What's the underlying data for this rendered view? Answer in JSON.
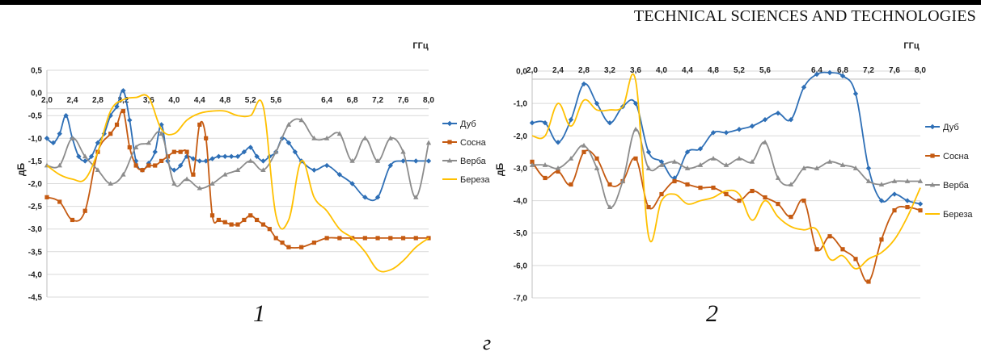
{
  "header": {
    "running_head": "TECHNICAL SCIENCES AND TECHNOLOGIES"
  },
  "figure": {
    "letter": "г"
  },
  "chart_data": [
    {
      "type": "line",
      "panel_label": "1",
      "xunit": "ГГц",
      "ylabel": "дБ",
      "ylim": [
        -4.5,
        0.5
      ],
      "xlim": [
        2.0,
        8.0
      ],
      "yticks": [
        0.5,
        0.0,
        -0.5,
        -1.0,
        -1.5,
        -2.0,
        -2.5,
        -3.0,
        -3.5,
        -4.0,
        -4.5
      ],
      "ytick_labels": [
        "0,5",
        "0,0",
        "-0,5",
        "-1,0",
        "-1,5",
        "-2,0",
        "-2,5",
        "-3,0",
        "-3,5",
        "-4,0",
        "-4,5"
      ],
      "xticks": [
        2.0,
        2.4,
        2.8,
        3.2,
        3.6,
        4.0,
        4.4,
        4.8,
        5.2,
        5.6,
        6.4,
        6.8,
        7.2,
        7.6,
        8.0
      ],
      "xtick_labels": [
        "2,0",
        "2,4",
        "2,8",
        "3,2",
        "3,6",
        "4,0",
        "4,4",
        "4,8",
        "5,2",
        "5,6",
        "6,4",
        "6,8",
        "7,2",
        "7,6",
        "8,0"
      ],
      "x_axis_at": -0.35,
      "legend": "right",
      "grid": true,
      "series": [
        {
          "name": "Дуб",
          "color": "#2e6fb6",
          "marker": "diamond",
          "x": [
            2.0,
            2.1,
            2.2,
            2.3,
            2.4,
            2.5,
            2.6,
            2.7,
            2.8,
            2.9,
            3.0,
            3.1,
            3.2,
            3.3,
            3.4,
            3.5,
            3.6,
            3.7,
            3.8,
            3.9,
            4.0,
            4.1,
            4.2,
            4.3,
            4.4,
            4.5,
            4.6,
            4.7,
            4.8,
            4.9,
            5.0,
            5.1,
            5.2,
            5.3,
            5.4,
            5.5,
            5.6,
            5.7,
            5.8,
            5.9,
            6.0,
            6.2,
            6.4,
            6.6,
            6.8,
            7.0,
            7.2,
            7.4,
            7.6,
            7.8,
            8.0
          ],
          "y": [
            -1.0,
            -1.1,
            -0.9,
            -0.5,
            -1.0,
            -1.4,
            -1.5,
            -1.4,
            -1.1,
            -0.9,
            -0.5,
            -0.3,
            0.05,
            -0.6,
            -1.5,
            -1.7,
            -1.55,
            -1.3,
            -0.7,
            -1.5,
            -1.7,
            -1.6,
            -1.4,
            -1.45,
            -1.5,
            -1.5,
            -1.45,
            -1.4,
            -1.4,
            -1.4,
            -1.4,
            -1.3,
            -1.2,
            -1.4,
            -1.5,
            -1.4,
            -1.3,
            -1.0,
            -1.1,
            -1.3,
            -1.5,
            -1.7,
            -1.6,
            -1.8,
            -2.0,
            -2.3,
            -2.3,
            -1.6,
            -1.5,
            -1.5,
            -1.5
          ]
        },
        {
          "name": "Сосна",
          "color": "#c55a11",
          "marker": "square",
          "x": [
            2.0,
            2.2,
            2.4,
            2.6,
            2.8,
            3.0,
            3.1,
            3.2,
            3.3,
            3.4,
            3.5,
            3.6,
            3.7,
            3.8,
            3.9,
            4.0,
            4.1,
            4.2,
            4.3,
            4.4,
            4.5,
            4.6,
            4.7,
            4.8,
            4.9,
            5.0,
            5.1,
            5.2,
            5.3,
            5.4,
            5.5,
            5.6,
            5.7,
            5.8,
            6.0,
            6.2,
            6.4,
            6.6,
            6.8,
            7.0,
            7.2,
            7.4,
            7.6,
            7.8,
            8.0
          ],
          "y": [
            -2.3,
            -2.4,
            -2.8,
            -2.6,
            -1.3,
            -0.9,
            -0.7,
            -0.4,
            -1.2,
            -1.6,
            -1.7,
            -1.6,
            -1.6,
            -1.5,
            -1.4,
            -1.3,
            -1.3,
            -1.3,
            -1.8,
            -0.7,
            -1.0,
            -2.7,
            -2.8,
            -2.85,
            -2.9,
            -2.9,
            -2.8,
            -2.7,
            -2.8,
            -2.9,
            -3.0,
            -3.2,
            -3.3,
            -3.4,
            -3.4,
            -3.3,
            -3.2,
            -3.2,
            -3.2,
            -3.2,
            -3.2,
            -3.2,
            -3.2,
            -3.2,
            -3.2
          ]
        },
        {
          "name": "Верба",
          "color": "#8c8c8c",
          "marker": "triangle",
          "x": [
            2.0,
            2.2,
            2.4,
            2.6,
            2.8,
            3.0,
            3.2,
            3.4,
            3.6,
            3.8,
            4.0,
            4.2,
            4.4,
            4.6,
            4.8,
            5.0,
            5.2,
            5.4,
            5.6,
            5.8,
            6.0,
            6.2,
            6.4,
            6.6,
            6.8,
            7.0,
            7.2,
            7.4,
            7.6,
            7.8,
            8.0
          ],
          "y": [
            -1.6,
            -1.6,
            -1.0,
            -1.4,
            -1.7,
            -2.0,
            -1.8,
            -1.2,
            -1.1,
            -0.9,
            -2.0,
            -1.9,
            -2.1,
            -2.0,
            -1.8,
            -1.7,
            -1.5,
            -1.7,
            -1.3,
            -0.7,
            -0.6,
            -1.0,
            -1.0,
            -0.9,
            -1.5,
            -1.0,
            -1.5,
            -1.0,
            -1.3,
            -2.3,
            -1.1
          ]
        },
        {
          "name": "Береза",
          "color": "#ffc000",
          "marker": "none",
          "x": [
            2.0,
            2.2,
            2.4,
            2.6,
            2.8,
            3.0,
            3.2,
            3.4,
            3.6,
            3.8,
            4.0,
            4.2,
            4.4,
            4.6,
            4.8,
            5.0,
            5.2,
            5.4,
            5.6,
            5.8,
            6.0,
            6.2,
            6.4,
            6.6,
            6.8,
            7.0,
            7.2,
            7.4,
            7.6,
            7.8,
            8.0
          ],
          "y": [
            -1.6,
            -1.8,
            -1.9,
            -1.9,
            -1.3,
            -0.4,
            -0.15,
            -0.1,
            -0.1,
            -0.8,
            -0.9,
            -0.6,
            -0.45,
            -0.4,
            -0.4,
            -0.5,
            -0.5,
            -0.3,
            -2.7,
            -2.8,
            -1.5,
            -2.3,
            -2.6,
            -3.0,
            -3.2,
            -3.5,
            -3.9,
            -3.9,
            -3.7,
            -3.4,
            -3.2
          ]
        }
      ]
    },
    {
      "type": "line",
      "panel_label": "2",
      "xunit": "ГГц",
      "ylabel": "дБ",
      "ylim": [
        -7.0,
        0.0
      ],
      "xlim": [
        2.0,
        8.0
      ],
      "yticks": [
        0.0,
        -1.0,
        -2.0,
        -3.0,
        -4.0,
        -5.0,
        -6.0,
        -7.0
      ],
      "ytick_labels": [
        "0,0",
        "-1,0",
        "-2,0",
        "-3,0",
        "-4,0",
        "-5,0",
        "-6,0",
        "-7,0"
      ],
      "xticks": [
        2.0,
        2.4,
        2.8,
        3.2,
        3.6,
        4.0,
        4.4,
        4.8,
        5.2,
        5.6,
        6.4,
        6.8,
        7.2,
        7.6,
        8.0
      ],
      "xtick_labels": [
        "2,0",
        "2,4",
        "2,8",
        "3,2",
        "3,6",
        "4,0",
        "4,4",
        "4,8",
        "5,2",
        "5,6",
        "6,4",
        "6,8",
        "7,2",
        "7,6",
        "8,0"
      ],
      "x_axis_at": -0.25,
      "legend": "right",
      "grid": true,
      "series": [
        {
          "name": "Дуб",
          "color": "#2e6fb6",
          "marker": "diamond",
          "x": [
            2.0,
            2.2,
            2.4,
            2.6,
            2.8,
            3.0,
            3.2,
            3.4,
            3.6,
            3.8,
            4.0,
            4.2,
            4.4,
            4.6,
            4.8,
            5.0,
            5.2,
            5.4,
            5.6,
            5.8,
            6.0,
            6.2,
            6.4,
            6.6,
            6.8,
            7.0,
            7.2,
            7.4,
            7.6,
            7.8,
            8.0
          ],
          "y": [
            -1.6,
            -1.6,
            -2.2,
            -1.5,
            -0.4,
            -1.0,
            -1.6,
            -1.1,
            -1.0,
            -2.5,
            -2.8,
            -3.3,
            -2.5,
            -2.4,
            -1.9,
            -1.9,
            -1.8,
            -1.7,
            -1.5,
            -1.3,
            -1.5,
            -0.5,
            -0.1,
            -0.05,
            -0.15,
            -0.7,
            -3.0,
            -4.0,
            -3.8,
            -4.0,
            -4.1
          ]
        },
        {
          "name": "Сосна",
          "color": "#c55a11",
          "marker": "square",
          "x": [
            2.0,
            2.2,
            2.4,
            2.6,
            2.8,
            3.0,
            3.2,
            3.4,
            3.6,
            3.8,
            4.0,
            4.2,
            4.4,
            4.6,
            4.8,
            5.0,
            5.2,
            5.4,
            5.6,
            5.8,
            6.0,
            6.2,
            6.4,
            6.6,
            6.8,
            7.0,
            7.2,
            7.4,
            7.6,
            7.8,
            8.0
          ],
          "y": [
            -2.8,
            -3.3,
            -3.1,
            -3.5,
            -2.5,
            -2.7,
            -3.5,
            -3.4,
            -2.7,
            -4.2,
            -3.8,
            -3.4,
            -3.5,
            -3.6,
            -3.6,
            -3.8,
            -4.0,
            -3.7,
            -3.9,
            -4.1,
            -4.5,
            -4.0,
            -5.5,
            -5.1,
            -5.5,
            -5.8,
            -6.5,
            -5.2,
            -4.3,
            -4.2,
            -4.3
          ]
        },
        {
          "name": "Верба",
          "color": "#8c8c8c",
          "marker": "triangle",
          "x": [
            2.0,
            2.2,
            2.4,
            2.6,
            2.8,
            3.0,
            3.2,
            3.4,
            3.6,
            3.8,
            4.0,
            4.2,
            4.4,
            4.6,
            4.8,
            5.0,
            5.2,
            5.4,
            5.6,
            5.8,
            6.0,
            6.2,
            6.4,
            6.6,
            6.8,
            7.0,
            7.2,
            7.4,
            7.6,
            7.8,
            8.0
          ],
          "y": [
            -2.9,
            -2.9,
            -3.0,
            -2.7,
            -2.3,
            -3.0,
            -4.2,
            -3.4,
            -1.8,
            -3.0,
            -2.9,
            -2.8,
            -3.0,
            -2.9,
            -2.7,
            -2.9,
            -2.7,
            -2.8,
            -2.2,
            -3.3,
            -3.5,
            -3.0,
            -3.0,
            -2.8,
            -2.9,
            -3.0,
            -3.4,
            -3.5,
            -3.4,
            -3.4,
            -3.4
          ]
        },
        {
          "name": "Береза",
          "color": "#ffc000",
          "marker": "none",
          "x": [
            2.0,
            2.2,
            2.4,
            2.6,
            2.8,
            3.0,
            3.2,
            3.4,
            3.6,
            3.8,
            4.0,
            4.2,
            4.4,
            4.6,
            4.8,
            5.0,
            5.2,
            5.4,
            5.6,
            5.8,
            6.0,
            6.2,
            6.4,
            6.6,
            6.8,
            7.0,
            7.2,
            7.4,
            7.6,
            7.8,
            8.0
          ],
          "y": [
            -2.0,
            -2.0,
            -1.0,
            -1.7,
            -0.9,
            -1.2,
            -1.2,
            -1.1,
            -0.3,
            -5.1,
            -4.0,
            -3.8,
            -4.1,
            -4.0,
            -3.9,
            -3.7,
            -3.8,
            -4.6,
            -4.0,
            -4.5,
            -4.8,
            -4.9,
            -4.9,
            -5.8,
            -5.7,
            -6.1,
            -5.8,
            -5.6,
            -5.2,
            -4.5,
            -3.6
          ]
        }
      ]
    }
  ]
}
